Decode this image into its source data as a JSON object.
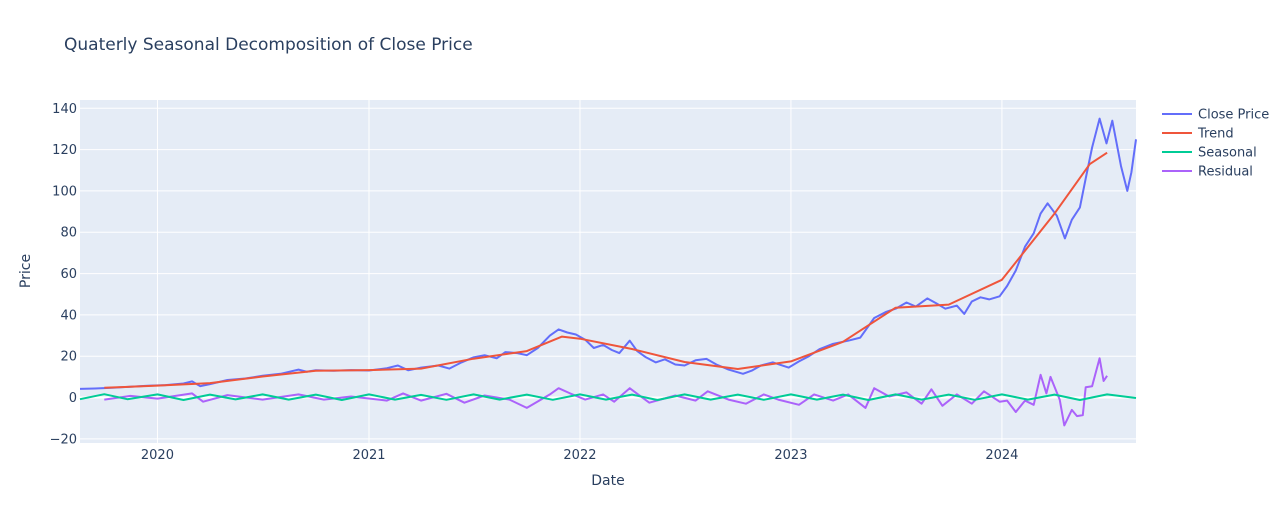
{
  "chart_data": {
    "type": "line",
    "title": "Quaterly Seasonal Decomposition of Close Price",
    "xlabel": "Date",
    "ylabel": "Price",
    "x_axis_type": "date",
    "xlim": [
      "2019-08-20",
      "2024-08-20"
    ],
    "ylim": [
      -22,
      144
    ],
    "x_ticks": [
      "2020-01-01",
      "2021-01-01",
      "2022-01-01",
      "2023-01-01",
      "2024-01-01"
    ],
    "x_tick_labels": [
      "2020",
      "2021",
      "2022",
      "2023",
      "2024"
    ],
    "y_ticks": [
      -20,
      0,
      20,
      40,
      60,
      80,
      100,
      120,
      140
    ],
    "y_tick_labels": [
      "−20",
      "0",
      "20",
      "40",
      "60",
      "80",
      "100",
      "120",
      "140"
    ],
    "grid": true,
    "legend_position": "top-right",
    "series": [
      {
        "name": "Close Price",
        "color": "#636efa",
        "points": [
          [
            "2019-08-20",
            4.2
          ],
          [
            "2019-09-15",
            4.4
          ],
          [
            "2019-10-15",
            4.7
          ],
          [
            "2019-11-15",
            5.2
          ],
          [
            "2019-12-15",
            5.7
          ],
          [
            "2020-01-15",
            6.0
          ],
          [
            "2020-02-15",
            6.8
          ],
          [
            "2020-03-01",
            7.8
          ],
          [
            "2020-03-15",
            5.5
          ],
          [
            "2020-04-01",
            6.5
          ],
          [
            "2020-05-01",
            8.5
          ],
          [
            "2020-06-01",
            9.2
          ],
          [
            "2020-07-01",
            10.5
          ],
          [
            "2020-08-01",
            11.5
          ],
          [
            "2020-09-01",
            13.5
          ],
          [
            "2020-09-15",
            12.5
          ],
          [
            "2020-10-01",
            13.2
          ],
          [
            "2020-11-01",
            13.0
          ],
          [
            "2020-12-01",
            13.3
          ],
          [
            "2021-01-01",
            13.1
          ],
          [
            "2021-02-01",
            14.2
          ],
          [
            "2021-02-20",
            15.5
          ],
          [
            "2021-03-10",
            13.2
          ],
          [
            "2021-04-01",
            14.5
          ],
          [
            "2021-05-01",
            15.5
          ],
          [
            "2021-05-20",
            14.0
          ],
          [
            "2021-06-10",
            17.0
          ],
          [
            "2021-07-01",
            19.5
          ],
          [
            "2021-07-20",
            20.5
          ],
          [
            "2021-08-10",
            19.0
          ],
          [
            "2021-08-25",
            22.0
          ],
          [
            "2021-09-15",
            21.5
          ],
          [
            "2021-10-01",
            20.5
          ],
          [
            "2021-10-20",
            24.0
          ],
          [
            "2021-11-10",
            30.0
          ],
          [
            "2021-11-25",
            33.0
          ],
          [
            "2021-12-10",
            31.5
          ],
          [
            "2021-12-25",
            30.5
          ],
          [
            "2022-01-10",
            28.0
          ],
          [
            "2022-01-25",
            24.0
          ],
          [
            "2022-02-10",
            25.5
          ],
          [
            "2022-02-25",
            23.0
          ],
          [
            "2022-03-10",
            21.5
          ],
          [
            "2022-03-28",
            27.5
          ],
          [
            "2022-04-10",
            22.5
          ],
          [
            "2022-04-25",
            19.5
          ],
          [
            "2022-05-12",
            17.0
          ],
          [
            "2022-05-28",
            18.5
          ],
          [
            "2022-06-15",
            16.0
          ],
          [
            "2022-07-01",
            15.5
          ],
          [
            "2022-07-20",
            18.0
          ],
          [
            "2022-08-08",
            18.7
          ],
          [
            "2022-08-25",
            16.0
          ],
          [
            "2022-09-15",
            13.5
          ],
          [
            "2022-10-10",
            11.5
          ],
          [
            "2022-10-25",
            13.0
          ],
          [
            "2022-11-10",
            15.5
          ],
          [
            "2022-12-01",
            17.0
          ],
          [
            "2022-12-28",
            14.5
          ],
          [
            "2023-01-15",
            17.5
          ],
          [
            "2023-02-01",
            20.0
          ],
          [
            "2023-02-20",
            23.5
          ],
          [
            "2023-03-15",
            26.0
          ],
          [
            "2023-04-10",
            27.5
          ],
          [
            "2023-05-01",
            29.0
          ],
          [
            "2023-05-25",
            38.5
          ],
          [
            "2023-06-15",
            41.5
          ],
          [
            "2023-07-01",
            43.0
          ],
          [
            "2023-07-20",
            46.0
          ],
          [
            "2023-08-05",
            44.0
          ],
          [
            "2023-08-25",
            48.0
          ],
          [
            "2023-09-10",
            45.5
          ],
          [
            "2023-09-25",
            43.0
          ],
          [
            "2023-10-15",
            44.5
          ],
          [
            "2023-10-28",
            40.5
          ],
          [
            "2023-11-10",
            46.5
          ],
          [
            "2023-11-25",
            48.5
          ],
          [
            "2023-12-10",
            47.5
          ],
          [
            "2023-12-28",
            49.0
          ],
          [
            "2024-01-10",
            54.0
          ],
          [
            "2024-01-25",
            61.5
          ],
          [
            "2024-02-10",
            73.0
          ],
          [
            "2024-02-25",
            79.5
          ],
          [
            "2024-03-08",
            89.0
          ],
          [
            "2024-03-20",
            94.0
          ],
          [
            "2024-04-05",
            88.0
          ],
          [
            "2024-04-19",
            77.0
          ],
          [
            "2024-05-01",
            86.0
          ],
          [
            "2024-05-15",
            92.0
          ],
          [
            "2024-05-25",
            106.0
          ],
          [
            "2024-06-05",
            121.0
          ],
          [
            "2024-06-18",
            135.0
          ],
          [
            "2024-06-30",
            123.0
          ],
          [
            "2024-07-10",
            134.0
          ],
          [
            "2024-07-25",
            112.0
          ],
          [
            "2024-08-05",
            100.0
          ],
          [
            "2024-08-12",
            109.0
          ],
          [
            "2024-08-20",
            125.0
          ]
        ]
      },
      {
        "name": "Trend",
        "color": "#ef553b",
        "points": [
          [
            "2019-10-01",
            4.7
          ],
          [
            "2020-01-01",
            5.8
          ],
          [
            "2020-04-01",
            7.0
          ],
          [
            "2020-07-01",
            10.2
          ],
          [
            "2020-10-01",
            13.0
          ],
          [
            "2021-01-01",
            13.3
          ],
          [
            "2021-04-01",
            14.0
          ],
          [
            "2021-07-01",
            18.8
          ],
          [
            "2021-10-01",
            22.5
          ],
          [
            "2021-12-01",
            29.5
          ],
          [
            "2022-01-01",
            28.5
          ],
          [
            "2022-04-01",
            23.5
          ],
          [
            "2022-07-01",
            17.2
          ],
          [
            "2022-10-01",
            13.8
          ],
          [
            "2023-01-01",
            17.5
          ],
          [
            "2023-04-01",
            27.0
          ],
          [
            "2023-07-01",
            43.5
          ],
          [
            "2023-10-01",
            45.0
          ],
          [
            "2024-01-01",
            57.0
          ],
          [
            "2024-04-01",
            89.0
          ],
          [
            "2024-06-01",
            113.0
          ],
          [
            "2024-07-01",
            118.5
          ]
        ]
      },
      {
        "name": "Seasonal",
        "color": "#00cc96",
        "points": [
          [
            "2019-08-20",
            -0.8
          ],
          [
            "2019-10-01",
            1.6
          ],
          [
            "2019-11-10",
            -0.8
          ],
          [
            "2020-01-01",
            1.5
          ],
          [
            "2020-02-15",
            -1.2
          ],
          [
            "2020-04-01",
            1.4
          ],
          [
            "2020-05-15",
            -0.9
          ],
          [
            "2020-07-01",
            1.5
          ],
          [
            "2020-08-15",
            -1.0
          ],
          [
            "2020-10-01",
            1.4
          ],
          [
            "2020-11-15",
            -1.2
          ],
          [
            "2021-01-01",
            1.5
          ],
          [
            "2021-02-15",
            -1.0
          ],
          [
            "2021-04-01",
            1.3
          ],
          [
            "2021-05-15",
            -1.1
          ],
          [
            "2021-07-01",
            1.5
          ],
          [
            "2021-08-15",
            -1.0
          ],
          [
            "2021-10-01",
            1.4
          ],
          [
            "2021-11-15",
            -1.1
          ],
          [
            "2022-01-01",
            1.5
          ],
          [
            "2022-02-15",
            -1.0
          ],
          [
            "2022-04-01",
            1.4
          ],
          [
            "2022-05-15",
            -1.2
          ],
          [
            "2022-07-01",
            1.5
          ],
          [
            "2022-08-15",
            -1.0
          ],
          [
            "2022-10-01",
            1.4
          ],
          [
            "2022-11-15",
            -1.1
          ],
          [
            "2023-01-01",
            1.5
          ],
          [
            "2023-02-15",
            -1.0
          ],
          [
            "2023-04-01",
            1.4
          ],
          [
            "2023-05-15",
            -1.2
          ],
          [
            "2023-07-01",
            1.5
          ],
          [
            "2023-08-15",
            -1.0
          ],
          [
            "2023-10-01",
            1.4
          ],
          [
            "2023-11-15",
            -1.1
          ],
          [
            "2024-01-01",
            1.5
          ],
          [
            "2024-02-15",
            -1.0
          ],
          [
            "2024-04-01",
            1.4
          ],
          [
            "2024-05-15",
            -1.2
          ],
          [
            "2024-07-01",
            1.5
          ],
          [
            "2024-08-20",
            -0.2
          ]
        ]
      },
      {
        "name": "Residual",
        "color": "#ab63fa",
        "points": [
          [
            "2019-10-01",
            -1.0
          ],
          [
            "2019-11-15",
            0.8
          ],
          [
            "2020-01-01",
            -0.5
          ],
          [
            "2020-03-01",
            2.0
          ],
          [
            "2020-03-20",
            -2.0
          ],
          [
            "2020-05-01",
            1.2
          ],
          [
            "2020-07-01",
            -1.0
          ],
          [
            "2020-09-01",
            1.5
          ],
          [
            "2020-10-15",
            -1.0
          ],
          [
            "2020-12-01",
            0.5
          ],
          [
            "2021-02-01",
            -1.5
          ],
          [
            "2021-03-01",
            2.0
          ],
          [
            "2021-04-01",
            -1.5
          ],
          [
            "2021-05-15",
            1.8
          ],
          [
            "2021-06-15",
            -2.5
          ],
          [
            "2021-07-20",
            1.0
          ],
          [
            "2021-09-01",
            -1.0
          ],
          [
            "2021-10-01",
            -5.0
          ],
          [
            "2021-11-10",
            1.5
          ],
          [
            "2021-11-25",
            4.5
          ],
          [
            "2021-12-15",
            2.0
          ],
          [
            "2022-01-10",
            -1.0
          ],
          [
            "2022-02-10",
            1.5
          ],
          [
            "2022-03-01",
            -2.0
          ],
          [
            "2022-03-28",
            4.5
          ],
          [
            "2022-05-01",
            -2.5
          ],
          [
            "2022-06-15",
            1.0
          ],
          [
            "2022-07-20",
            -1.5
          ],
          [
            "2022-08-10",
            3.0
          ],
          [
            "2022-09-15",
            -1.0
          ],
          [
            "2022-10-15",
            -3.0
          ],
          [
            "2022-11-15",
            1.5
          ],
          [
            "2022-12-10",
            -1.0
          ],
          [
            "2023-01-15",
            -3.5
          ],
          [
            "2023-02-10",
            1.5
          ],
          [
            "2023-03-15",
            -1.5
          ],
          [
            "2023-04-10",
            1.5
          ],
          [
            "2023-05-10",
            -5.0
          ],
          [
            "2023-05-25",
            4.5
          ],
          [
            "2023-06-20",
            0.5
          ],
          [
            "2023-07-20",
            2.5
          ],
          [
            "2023-08-15",
            -3.0
          ],
          [
            "2023-09-01",
            4.0
          ],
          [
            "2023-09-20",
            -4.0
          ],
          [
            "2023-10-15",
            1.5
          ],
          [
            "2023-11-10",
            -3.0
          ],
          [
            "2023-12-01",
            3.0
          ],
          [
            "2023-12-28",
            -2.0
          ],
          [
            "2024-01-10",
            -1.5
          ],
          [
            "2024-01-25",
            -7.0
          ],
          [
            "2024-02-10",
            -1.5
          ],
          [
            "2024-02-25",
            -3.5
          ],
          [
            "2024-03-08",
            11.0
          ],
          [
            "2024-03-18",
            2.0
          ],
          [
            "2024-03-25",
            10.0
          ],
          [
            "2024-04-10",
            -1.0
          ],
          [
            "2024-04-18",
            -13.5
          ],
          [
            "2024-05-01",
            -6.0
          ],
          [
            "2024-05-10",
            -9.0
          ],
          [
            "2024-05-20",
            -8.5
          ],
          [
            "2024-05-25",
            5.0
          ],
          [
            "2024-06-05",
            5.5
          ],
          [
            "2024-06-18",
            19.0
          ],
          [
            "2024-06-25",
            8.0
          ],
          [
            "2024-07-01",
            10.5
          ]
        ]
      }
    ]
  }
}
